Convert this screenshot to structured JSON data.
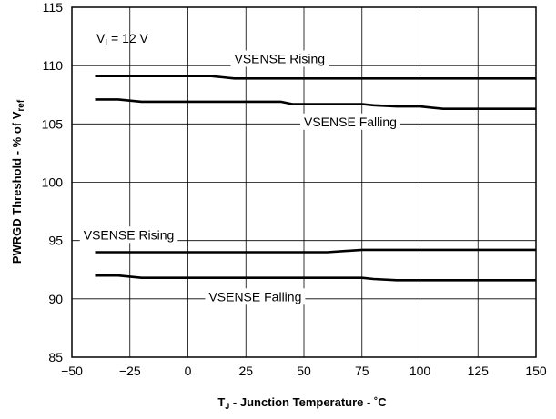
{
  "chart_data": {
    "type": "line",
    "xlabel": {
      "main": "T",
      "sub": "J",
      "rest": " - Junction Temperature - ˚C"
    },
    "ylabel": {
      "main": "PWRGD Threshold - % of V",
      "sub": "ref"
    },
    "xlim": [
      -50,
      150
    ],
    "ylim": [
      85,
      115
    ],
    "xticks": [
      -50,
      -25,
      0,
      25,
      50,
      75,
      100,
      125,
      150
    ],
    "xtick_labels": [
      "−50",
      "−25",
      "0",
      "25",
      "50",
      "75",
      "100",
      "125",
      "150"
    ],
    "yticks": [
      85,
      90,
      95,
      100,
      105,
      110,
      115
    ],
    "grid": true,
    "condition": {
      "main": "V",
      "sub": "I",
      "rest": " = 12 V"
    },
    "series": [
      {
        "label": "VSENSE Rising",
        "x": [
          -40,
          10,
          15,
          20,
          150
        ],
        "y": [
          109.1,
          109.1,
          109.0,
          108.9,
          108.9
        ]
      },
      {
        "label": "VSENSE Falling",
        "x": [
          -40,
          -30,
          -20,
          40,
          45,
          75,
          80,
          90,
          100,
          105,
          110,
          150
        ],
        "y": [
          107.1,
          107.1,
          106.9,
          106.9,
          106.7,
          106.7,
          106.6,
          106.5,
          106.5,
          106.4,
          106.3,
          106.3
        ]
      },
      {
        "label": "VSENSE Rising",
        "x": [
          -40,
          60,
          75,
          150
        ],
        "y": [
          94.0,
          94.0,
          94.2,
          94.2
        ]
      },
      {
        "label": "VSENSE Falling",
        "x": [
          -40,
          -30,
          -20,
          75,
          80,
          90,
          150
        ],
        "y": [
          92.0,
          92.0,
          91.8,
          91.8,
          91.7,
          91.6,
          91.6
        ]
      }
    ],
    "annotations": [
      {
        "text": "VSENSE Rising",
        "x": 20,
        "y": 110.6
      },
      {
        "text": "VSENSE Falling",
        "x": 50,
        "y": 105.2
      },
      {
        "text": "VSENSE Rising",
        "x": -45,
        "y": 95.5
      },
      {
        "text": "VSENSE Falling",
        "x": 9,
        "y": 90.2
      }
    ]
  }
}
